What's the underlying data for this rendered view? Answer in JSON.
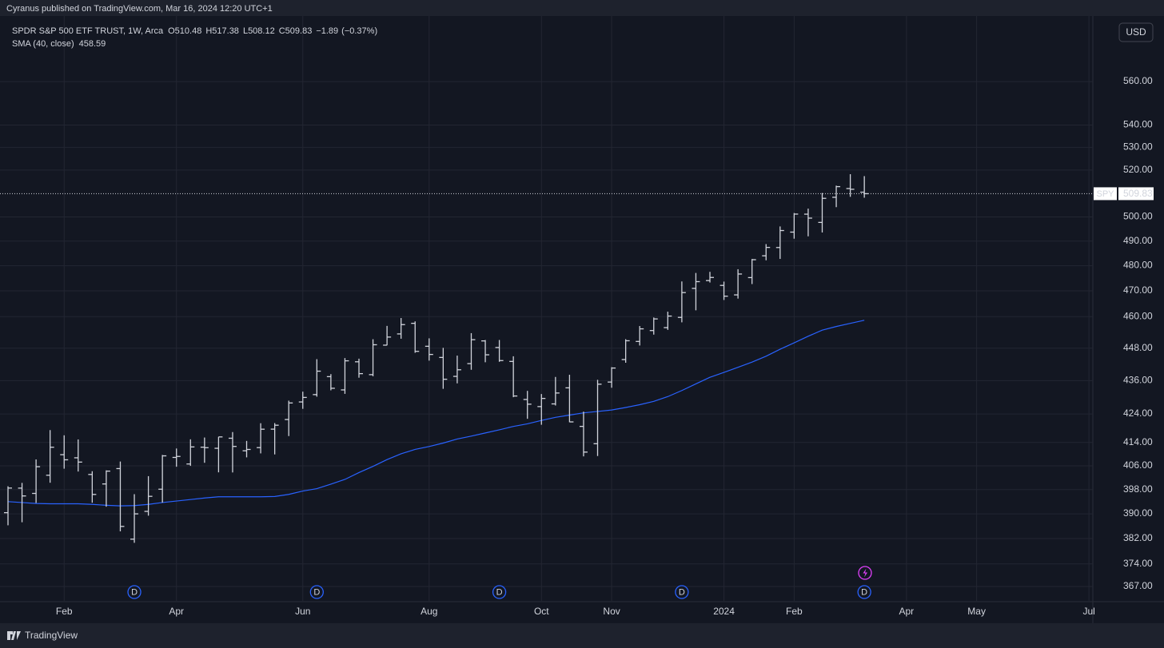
{
  "chart_data": {
    "type": "ohlc",
    "publisher_line": "Cyranus published on TradingView.com, Mar 16, 2024 12:20 UTC+1",
    "symbol_title": "SPDR S&P 500 ETF TRUST, 1W, Arca",
    "symbol": "SPY",
    "currency": "USD",
    "ohlc_letters": {
      "open": "O",
      "high": "H",
      "low": "L",
      "close": "C"
    },
    "change": {
      "value": -1.89,
      "label": "−1.89"
    },
    "change_pct": {
      "value": -0.37,
      "label": "(−0.37%)"
    },
    "categories": [
      null,
      null,
      null,
      null,
      "Feb",
      null,
      null,
      null,
      null,
      null,
      null,
      null,
      "Apr",
      null,
      null,
      null,
      null,
      null,
      null,
      null,
      null,
      "Jun",
      null,
      null,
      null,
      null,
      null,
      null,
      null,
      null,
      "Aug",
      null,
      null,
      null,
      null,
      null,
      null,
      null,
      "Oct",
      null,
      null,
      null,
      null,
      "Nov",
      null,
      null,
      null,
      null,
      null,
      null,
      null,
      "2024",
      null,
      null,
      null,
      null,
      "Feb",
      null,
      null,
      null,
      null,
      null,
      null,
      null,
      "Apr",
      null,
      null,
      null,
      null,
      "May",
      null,
      null,
      null,
      null,
      null,
      null,
      null,
      "Jul"
    ],
    "open": [
      390.37,
      398.48,
      396.72,
      402.8,
      409.79,
      408.72,
      403.06,
      399.87,
      405.05,
      381.81,
      390.8,
      398.12,
      408.85,
      406.61,
      412.37,
      411.99,
      415.47,
      411.13,
      412.22,
      418.64,
      422.03,
      428.28,
      430.92,
      437.45,
      432.62,
      442.92,
      438.18,
      449.13,
      453.37,
      457.41,
      448.71,
      444.53,
      437.55,
      442.24,
      450.73,
      448.24,
      443.05,
      429.17,
      426.62,
      427.58,
      433.37,
      419.61,
      413.56,
      435.47,
      443.75,
      450.53,
      454.65,
      455.77,
      459.69,
      470.98,
      474.07,
      472.16,
      468.43,
      475.26,
      484.01,
      487.37,
      493.7,
      501.17,
      497.72,
      508.3,
      512.03,
      510.48,
      null,
      null,
      null,
      null,
      null,
      null,
      null,
      null,
      null,
      null,
      null,
      null,
      null,
      null,
      null,
      null
    ],
    "high": [
      399.1,
      400.23,
      408.16,
      418.31,
      416.49,
      415.05,
      404.16,
      404.45,
      407.45,
      396.47,
      402.49,
      409.7,
      411.92,
      415.09,
      415.72,
      415.94,
      417.62,
      414.54,
      420.72,
      420.77,
      428.74,
      431.99,
      443.9,
      438.37,
      444.3,
      444.08,
      451.36,
      456.43,
      459.44,
      458.16,
      451.7,
      448.11,
      445.22,
      453.67,
      451.06,
      451.08,
      444.97,
      432.27,
      431.13,
      437.34,
      438.14,
      424.82,
      436.29,
      440.93,
      451.38,
      456.38,
      459.65,
      461.89,
      473.73,
      477.11,
      477.55,
      473.67,
      478.6,
      482.72,
      488.77,
      496.05,
      501.65,
      503.5,
      510.13,
      513.29,
      518.22,
      517.38,
      null,
      null,
      null,
      null,
      null,
      null,
      null,
      null,
      null,
      null,
      null,
      null,
      null,
      null,
      null,
      null
    ],
    "low": [
      386.27,
      387.26,
      393.56,
      400.28,
      405.01,
      404.05,
      393.64,
      392.33,
      384.32,
      380.65,
      389.4,
      393.69,
      405.68,
      405.97,
      407.02,
      403.78,
      403.74,
      408.87,
      410.23,
      409.88,
      416.22,
      425.82,
      430.17,
      432.47,
      431.19,
      437.06,
      437.59,
      449.08,
      451.55,
      446.27,
      443.35,
      433.01,
      435.0,
      439.97,
      442.75,
      442.92,
      429.99,
      422.29,
      420.18,
      427.01,
      421.08,
      409.21,
      409.33,
      433.4,
      442.56,
      449.0,
      453.11,
      454.91,
      457.79,
      462.42,
      473.3,
      466.43,
      466.98,
      472.69,
      482.19,
      482.75,
      490.99,
      491.96,
      493.55,
      504.12,
      508.5,
      508.12,
      null,
      null,
      null,
      null,
      null,
      null,
      null,
      null,
      null,
      null,
      null,
      null,
      null,
      null,
      null,
      null
    ],
    "close": [
      398.5,
      395.88,
      405.68,
      412.35,
      408.04,
      407.26,
      396.38,
      404.19,
      385.91,
      389.99,
      395.75,
      409.39,
      409.19,
      412.46,
      412.2,
      415.93,
      412.63,
      411.59,
      418.62,
      420.02,
      427.92,
      429.9,
      439.46,
      433.21,
      443.28,
      438.55,
      449.28,
      452.18,
      456.92,
      446.81,
      445.65,
      436.5,
      439.97,
      451.19,
      445.52,
      443.37,
      430.42,
      427.48,
      429.54,
      431.5,
      421.19,
      410.68,
      434.69,
      440.61,
      450.79,
      455.3,
      459.1,
      460.2,
      469.33,
      473.65,
      475.31,
      467.92,
      476.68,
      482.43,
      487.41,
      494.35,
      501.2,
      499.51,
      507.85,
      512.85,
      511.72,
      509.83,
      null,
      null,
      null,
      null,
      null,
      null,
      null,
      null,
      null,
      null,
      null,
      null,
      null,
      null,
      null,
      null
    ],
    "color": "#d1d4dc",
    "sma": {
      "name": "SMA (40, close)",
      "color": "#2962ff",
      "values": [
        394.0,
        393.7,
        393.4,
        393.3,
        393.3,
        393.3,
        393.1,
        392.8,
        392.6,
        392.7,
        393.1,
        393.7,
        394.2,
        394.7,
        395.2,
        395.6,
        395.6,
        395.6,
        395.6,
        395.7,
        396.4,
        397.5,
        398.3,
        399.8,
        401.4,
        403.7,
        405.8,
        408.1,
        410.1,
        411.6,
        412.6,
        413.8,
        415.2,
        416.2,
        417.3,
        418.4,
        419.6,
        420.5,
        421.7,
        422.8,
        423.6,
        424.4,
        424.9,
        425.4,
        426.3,
        427.3,
        428.5,
        430.2,
        432.4,
        434.8,
        437.2,
        439.0,
        440.9,
        442.8,
        445.0,
        447.6,
        450.0,
        452.5,
        454.8,
        456.2,
        457.4,
        458.59,
        null,
        null,
        null,
        null,
        null,
        null,
        null,
        null,
        null,
        null,
        null,
        null,
        null,
        null,
        null,
        null
      ]
    },
    "dividend_markers": [
      null,
      null,
      null,
      null,
      null,
      null,
      null,
      null,
      null,
      "D",
      null,
      null,
      null,
      null,
      null,
      null,
      null,
      null,
      null,
      null,
      null,
      null,
      "D",
      null,
      null,
      null,
      null,
      null,
      null,
      null,
      null,
      null,
      null,
      null,
      null,
      "D",
      null,
      null,
      null,
      null,
      null,
      null,
      null,
      null,
      null,
      null,
      null,
      null,
      "D",
      null,
      null,
      null,
      null,
      null,
      null,
      null,
      null,
      null,
      null,
      null,
      null,
      "D",
      null,
      null,
      null,
      null,
      null,
      null,
      null,
      null,
      null,
      null,
      null,
      null,
      null,
      null,
      null,
      null
    ],
    "ylim": [
      362.6,
      590.8
    ],
    "log_scale": true,
    "yticks": [
      {
        "value": 560,
        "label": "560.00"
      },
      {
        "value": 540,
        "label": "540.00"
      },
      {
        "value": 530,
        "label": "530.00"
      },
      {
        "value": 520,
        "label": "520.00"
      },
      {
        "value": 500,
        "label": "500.00"
      },
      {
        "value": 490,
        "label": "490.00"
      },
      {
        "value": 480,
        "label": "480.00"
      },
      {
        "value": 470,
        "label": "470.00"
      },
      {
        "value": 460,
        "label": "460.00"
      },
      {
        "value": 448,
        "label": "448.00"
      },
      {
        "value": 436,
        "label": "436.00"
      },
      {
        "value": 424,
        "label": "424.00"
      },
      {
        "value": 414,
        "label": "414.00"
      },
      {
        "value": 406,
        "label": "406.00"
      },
      {
        "value": 398,
        "label": "398.00"
      },
      {
        "value": 390,
        "label": "390.00"
      },
      {
        "value": 382,
        "label": "382.00"
      },
      {
        "value": 374,
        "label": "374.00"
      },
      {
        "value": 367,
        "label": "367.00"
      }
    ],
    "grid": true,
    "footer_brand": "TradingView"
  }
}
